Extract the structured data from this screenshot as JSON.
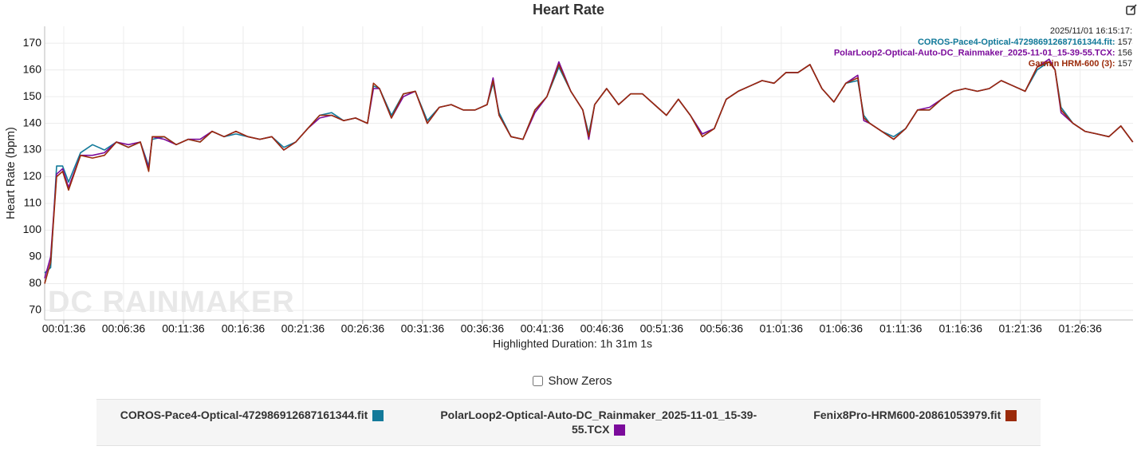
{
  "chart_data": {
    "type": "line",
    "title": "Heart Rate",
    "y_label": "Heart Rate (bpm)",
    "x_label": "Highlighted Duration: 1h 31m 1s",
    "watermark": "DC RAINMAKER",
    "checkbox_label": "Show Zeros",
    "grid": true,
    "xlim": [
      0,
      91.02
    ],
    "ylim": [
      66.4,
      176.3
    ],
    "yticks": [
      70,
      80,
      90,
      100,
      110,
      120,
      130,
      140,
      150,
      160,
      170
    ],
    "xticks": [
      {
        "value": 1.6,
        "label": "00:01:36"
      },
      {
        "value": 6.6,
        "label": "00:06:36"
      },
      {
        "value": 11.6,
        "label": "00:11:36"
      },
      {
        "value": 16.6,
        "label": "00:16:36"
      },
      {
        "value": 21.6,
        "label": "00:21:36"
      },
      {
        "value": 26.6,
        "label": "00:26:36"
      },
      {
        "value": 31.6,
        "label": "00:31:36"
      },
      {
        "value": 36.6,
        "label": "00:36:36"
      },
      {
        "value": 41.6,
        "label": "00:41:36"
      },
      {
        "value": 46.6,
        "label": "00:46:36"
      },
      {
        "value": 51.6,
        "label": "00:51:36"
      },
      {
        "value": 56.6,
        "label": "00:56:36"
      },
      {
        "value": 61.6,
        "label": "01:01:36"
      },
      {
        "value": 66.6,
        "label": "01:06:36"
      },
      {
        "value": 71.6,
        "label": "01:11:36"
      },
      {
        "value": 76.6,
        "label": "01:16:36"
      },
      {
        "value": 81.6,
        "label": "01:21:36"
      },
      {
        "value": 86.6,
        "label": "01:26:36"
      }
    ],
    "x": [
      0,
      0.5,
      1,
      1.5,
      2,
      3,
      4,
      5,
      6,
      7,
      8,
      8.7,
      9,
      10,
      11,
      12,
      13,
      14,
      15,
      16,
      17,
      18,
      19,
      20,
      21,
      22,
      23,
      24,
      25,
      26,
      27,
      27.5,
      28,
      29,
      30,
      31,
      32,
      33,
      34,
      35,
      36,
      37,
      37.5,
      38,
      39,
      40,
      41,
      42,
      43,
      44,
      45,
      45.5,
      46,
      47,
      48,
      49,
      50,
      51,
      52,
      53,
      54,
      55,
      56,
      57,
      58,
      59,
      60,
      61,
      62,
      63,
      64,
      65,
      66,
      67,
      68,
      68.5,
      69,
      70,
      71,
      72,
      73,
      74,
      75,
      76,
      77,
      78,
      79,
      80,
      81,
      82,
      83,
      84,
      84.5,
      85,
      86,
      87,
      88,
      89,
      90,
      91
    ],
    "series": [
      {
        "name": "COROS-Pace4-Optical-472986912687161344.fit",
        "color": "#137a9a",
        "values": [
          84,
          86,
          124,
          124,
          118,
          129,
          132,
          130,
          133,
          131,
          133,
          124,
          134,
          135,
          132,
          134,
          133,
          137,
          135,
          136,
          135,
          134,
          135,
          131,
          133,
          138,
          143,
          144,
          141,
          142,
          140,
          154,
          153,
          143,
          151,
          152,
          141,
          146,
          147,
          145,
          145,
          147,
          155,
          144,
          135,
          134,
          145,
          150,
          161,
          152,
          145,
          136,
          147,
          153,
          147,
          151,
          151,
          147,
          143,
          149,
          143,
          136,
          138,
          149,
          152,
          154,
          156,
          155,
          159,
          159,
          162,
          153,
          148,
          155,
          156,
          143,
          140,
          137,
          135,
          138,
          145,
          145,
          149,
          152,
          153,
          152,
          153,
          156,
          154,
          152,
          160,
          163,
          160,
          146,
          140,
          137,
          136,
          135,
          139,
          133
        ]
      },
      {
        "name": "PolarLoop2-Optical-Auto-DC_Rainmaker_2025-11-01_15-39-55.TCX",
        "color": "#7b0b9b",
        "values": [
          82,
          90,
          121,
          123,
          116,
          128,
          128,
          129,
          133,
          132,
          133,
          123,
          135,
          134,
          132,
          134,
          134,
          137,
          135,
          137,
          135,
          134,
          135,
          130,
          133,
          138,
          142,
          143,
          141,
          142,
          140,
          153,
          153,
          142,
          150,
          152,
          140,
          146,
          147,
          145,
          145,
          147,
          157,
          143,
          135,
          134,
          144,
          150,
          163,
          152,
          145,
          134,
          147,
          153,
          147,
          151,
          151,
          147,
          143,
          149,
          143,
          136,
          138,
          149,
          152,
          154,
          156,
          155,
          159,
          159,
          162,
          153,
          148,
          155,
          158,
          141,
          140,
          137,
          134,
          138,
          145,
          146,
          149,
          152,
          153,
          152,
          153,
          156,
          154,
          152,
          161,
          164,
          160,
          144,
          140,
          137,
          136,
          135,
          139,
          133
        ]
      },
      {
        "name": "Fenix8Pro-HRM600-20861053979.fit",
        "color": "#9b2b0b",
        "values": [
          80,
          88,
          120,
          122,
          115,
          128,
          127,
          128,
          133,
          131,
          133,
          122,
          135,
          135,
          132,
          134,
          133,
          137,
          135,
          137,
          135,
          134,
          135,
          130,
          133,
          138,
          143,
          143,
          141,
          142,
          140,
          155,
          153,
          142,
          151,
          152,
          140,
          146,
          147,
          145,
          145,
          147,
          156,
          143,
          135,
          134,
          145,
          150,
          162,
          152,
          145,
          135,
          147,
          153,
          147,
          151,
          151,
          147,
          143,
          149,
          143,
          135,
          138,
          149,
          152,
          154,
          156,
          155,
          159,
          159,
          162,
          153,
          148,
          155,
          157,
          142,
          140,
          137,
          134,
          138,
          145,
          145,
          149,
          152,
          153,
          152,
          153,
          156,
          154,
          152,
          161,
          163,
          160,
          145,
          140,
          137,
          136,
          135,
          139,
          133
        ]
      }
    ],
    "tooltip": {
      "title": "2025/11/01 16:15:17:",
      "rows": [
        {
          "name": "COROS-Pace4-Optical-472986912687161344.fit:",
          "value": 157,
          "color": "#137a9a"
        },
        {
          "name": "PolarLoop2-Optical-Auto-DC_Rainmaker_2025-11-01_15-39-55.TCX:",
          "value": 156,
          "color": "#7b0b9b"
        },
        {
          "name": "Garmin HRM-600 (3):",
          "value": 157,
          "color": "#9b2b0b"
        }
      ]
    }
  }
}
